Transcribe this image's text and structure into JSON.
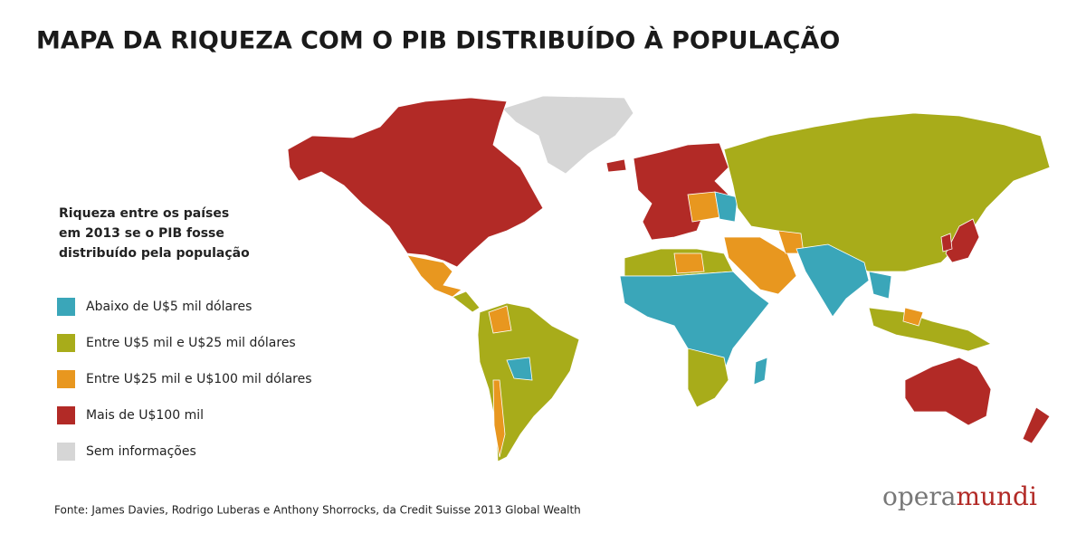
{
  "title": "MAPA DA RIQUEZA COM O PIB DISTRIBUÍDO À POPULAÇÃO",
  "legend": {
    "title_lines": [
      "Riqueza entre os países",
      "em 2013 se o PIB fosse",
      "distribuído pela população"
    ],
    "items": [
      {
        "label": "Abaixo de U$5 mil dólares",
        "color": "#3aa6b9"
      },
      {
        "label": "Entre U$5 mil e U$25 mil dólares",
        "color": "#a8ac1a"
      },
      {
        "label": "Entre U$25 mil e U$100 mil dólares",
        "color": "#e8971f"
      },
      {
        "label": "Mais de U$100 mil",
        "color": "#b22a26"
      },
      {
        "label": "Sem informações",
        "color": "#d6d6d6"
      }
    ]
  },
  "source": "Fonte: James Davies, Rodrigo Luberas e Anthony Shorrocks, da Credit Suisse 2013 Global Wealth",
  "logo": {
    "first": "opera",
    "second": "mundi"
  }
}
